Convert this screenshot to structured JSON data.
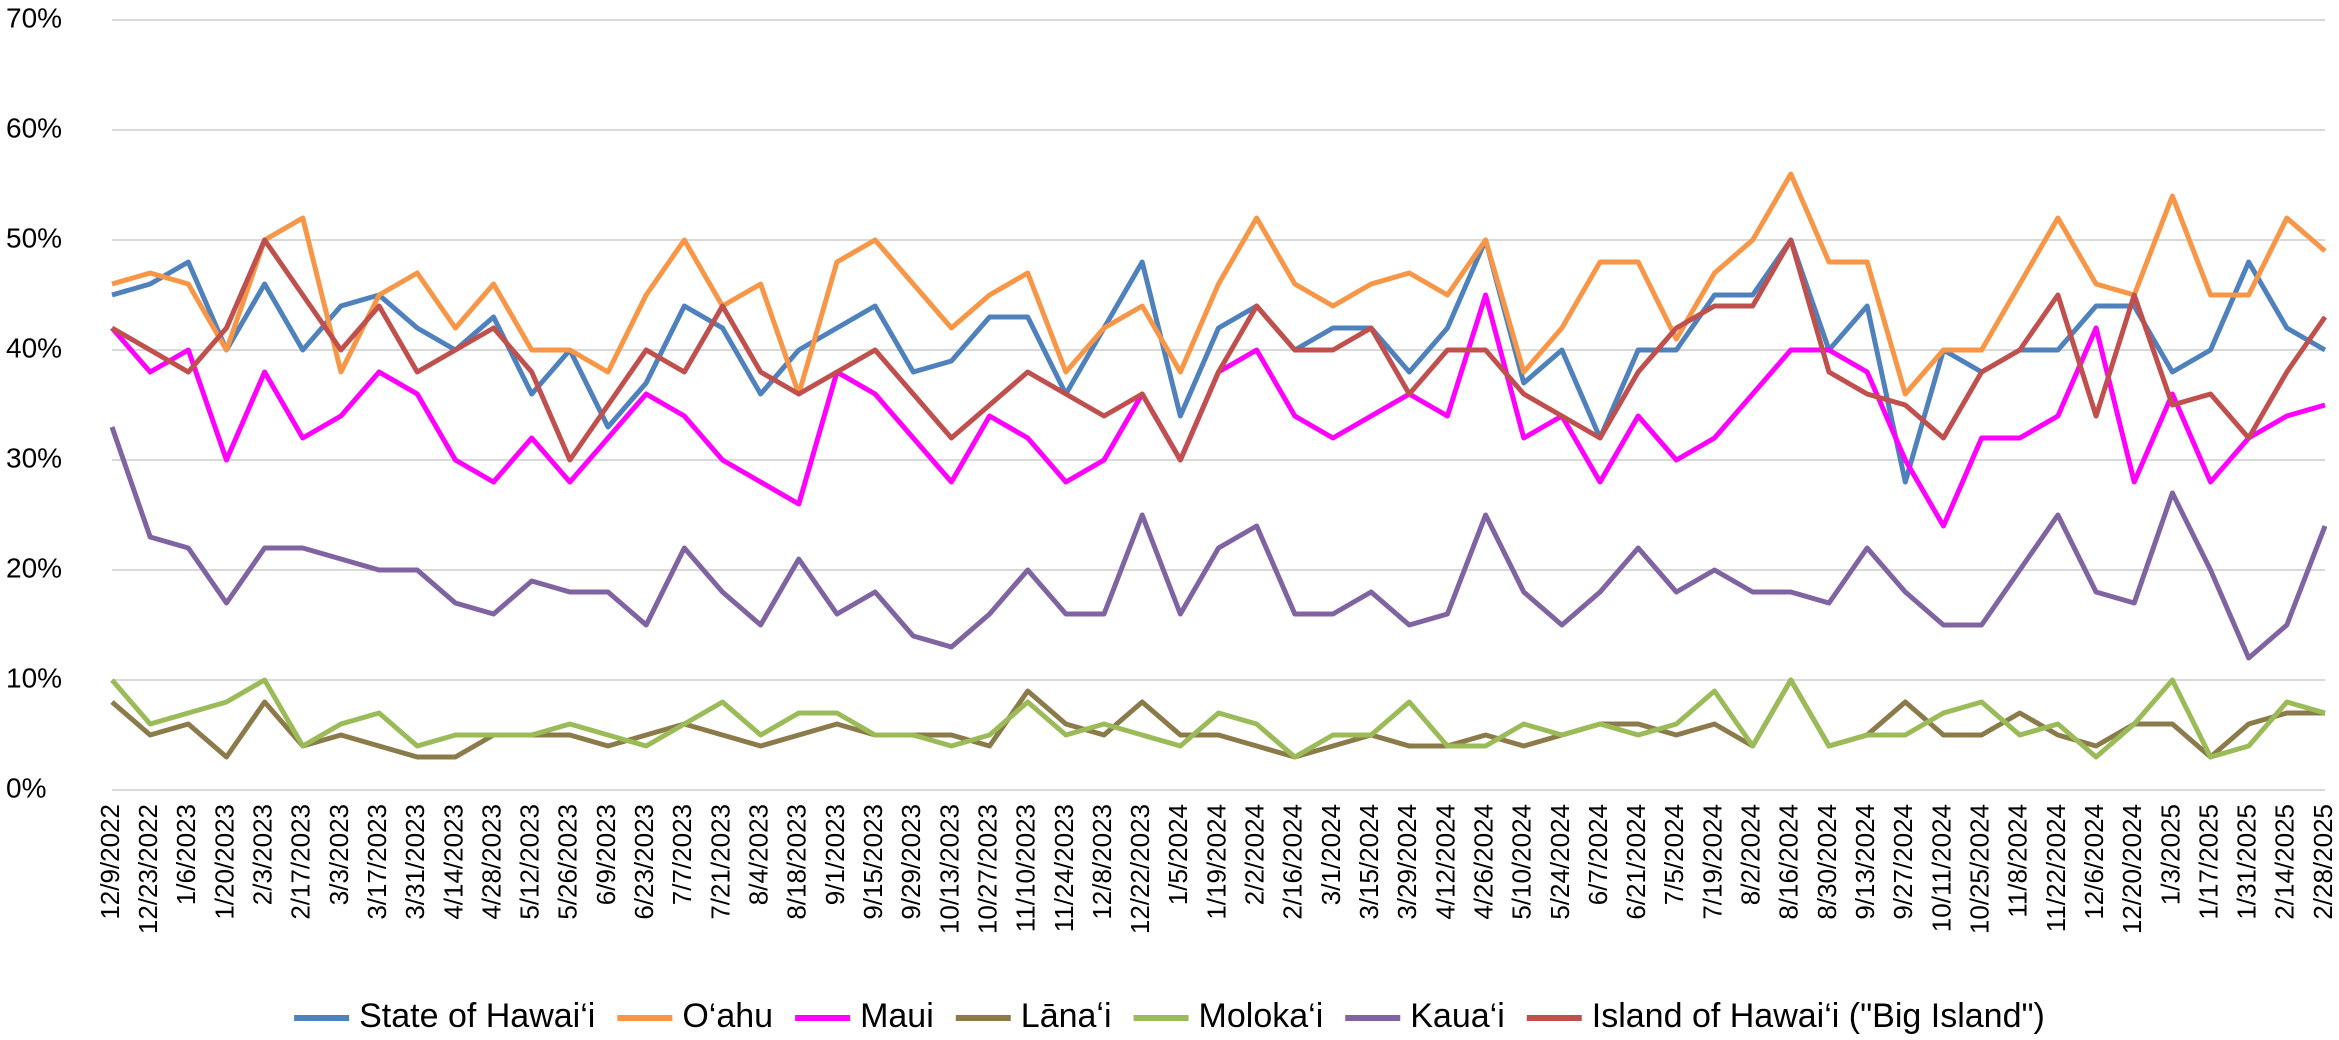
{
  "chart_data": {
    "type": "line",
    "categories": [
      "12/9/2022",
      "12/23/2022",
      "1/6/2023",
      "1/20/2023",
      "2/3/2023",
      "2/17/2023",
      "3/3/2023",
      "3/17/2023",
      "3/31/2023",
      "4/14/2023",
      "4/28/2023",
      "5/12/2023",
      "5/26/2023",
      "6/9/2023",
      "6/23/2023",
      "7/7/2023",
      "7/21/2023",
      "8/4/2023",
      "8/18/2023",
      "9/1/2023",
      "9/15/2023",
      "9/29/2023",
      "10/13/2023",
      "10/27/2023",
      "11/10/2023",
      "11/24/2023",
      "12/8/2023",
      "12/22/2023",
      "1/5/2024",
      "1/19/2024",
      "2/2/2024",
      "2/16/2024",
      "3/1/2024",
      "3/15/2024",
      "3/29/2024",
      "4/12/2024",
      "4/26/2024",
      "5/10/2024",
      "5/24/2024",
      "6/7/2024",
      "6/21/2024",
      "7/5/2024",
      "7/19/2024",
      "8/2/2024",
      "8/16/2024",
      "8/30/2024",
      "9/13/2024",
      "9/27/2024",
      "10/11/2024",
      "10/25/2024",
      "11/8/2024",
      "11/22/2024",
      "12/6/2024",
      "12/20/2024",
      "1/3/2025",
      "1/17/2025",
      "1/31/2025",
      "2/14/2025",
      "2/28/2025"
    ],
    "series": [
      {
        "name": "State of Hawai‘i",
        "color": "#4f81bd",
        "values": [
          45,
          46,
          48,
          40,
          46,
          40,
          44,
          45,
          42,
          40,
          43,
          36,
          40,
          33,
          37,
          44,
          42,
          36,
          40,
          42,
          44,
          38,
          39,
          43,
          43,
          36,
          42,
          48,
          34,
          42,
          44,
          40,
          42,
          42,
          38,
          42,
          50,
          37,
          40,
          32,
          40,
          40,
          45,
          45,
          50,
          40,
          44,
          28,
          40,
          38,
          40,
          40,
          44,
          44,
          38,
          40,
          48,
          42,
          40
        ]
      },
      {
        "name": "O‘ahu",
        "color": "#f79646",
        "values": [
          46,
          47,
          46,
          40,
          50,
          52,
          38,
          45,
          47,
          42,
          46,
          40,
          40,
          38,
          45,
          50,
          44,
          46,
          36,
          48,
          50,
          46,
          42,
          45,
          47,
          38,
          42,
          44,
          38,
          46,
          52,
          46,
          44,
          46,
          47,
          45,
          50,
          38,
          42,
          48,
          48,
          41,
          47,
          50,
          56,
          48,
          48,
          36,
          40,
          40,
          46,
          52,
          46,
          45,
          54,
          45,
          45,
          52,
          49
        ]
      },
      {
        "name": "Maui",
        "color": "#ff00ff",
        "values": [
          42,
          38,
          40,
          30,
          38,
          32,
          34,
          38,
          36,
          30,
          28,
          32,
          28,
          32,
          36,
          34,
          30,
          28,
          26,
          38,
          36,
          32,
          28,
          34,
          32,
          28,
          30,
          36,
          30,
          38,
          40,
          34,
          32,
          34,
          36,
          34,
          45,
          32,
          34,
          28,
          34,
          30,
          32,
          36,
          40,
          40,
          38,
          30,
          24,
          32,
          32,
          34,
          42,
          28,
          36,
          28,
          32,
          34,
          35
        ]
      },
      {
        "name": "Lānaʻi",
        "color": "#8c7b4a",
        "values": [
          8,
          5,
          6,
          3,
          8,
          4,
          5,
          4,
          3,
          3,
          5,
          5,
          5,
          4,
          5,
          6,
          5,
          4,
          5,
          6,
          5,
          5,
          5,
          4,
          9,
          6,
          5,
          8,
          5,
          5,
          4,
          3,
          4,
          5,
          4,
          4,
          5,
          4,
          5,
          6,
          6,
          5,
          6,
          4,
          10,
          4,
          5,
          8,
          5,
          5,
          7,
          5,
          4,
          6,
          6,
          3,
          6,
          7,
          7
        ]
      },
      {
        "name": "Moloka‘i",
        "color": "#9bbb59",
        "values": [
          10,
          6,
          7,
          8,
          10,
          4,
          6,
          7,
          4,
          5,
          5,
          5,
          6,
          5,
          4,
          6,
          8,
          5,
          7,
          7,
          5,
          5,
          4,
          5,
          8,
          5,
          6,
          5,
          4,
          7,
          6,
          3,
          5,
          5,
          8,
          4,
          4,
          6,
          5,
          6,
          5,
          6,
          9,
          4,
          10,
          4,
          5,
          5,
          7,
          8,
          5,
          6,
          3,
          6,
          10,
          3,
          4,
          8,
          7
        ]
      },
      {
        "name": "Kaua‘i",
        "color": "#8064a2",
        "values": [
          33,
          23,
          22,
          17,
          22,
          22,
          21,
          20,
          20,
          17,
          16,
          19,
          18,
          18,
          15,
          22,
          18,
          15,
          21,
          16,
          18,
          14,
          13,
          16,
          20,
          16,
          16,
          25,
          16,
          22,
          24,
          16,
          16,
          18,
          15,
          16,
          25,
          18,
          15,
          18,
          22,
          18,
          20,
          18,
          18,
          17,
          22,
          18,
          15,
          15,
          20,
          25,
          18,
          17,
          27,
          20,
          12,
          15,
          24
        ]
      },
      {
        "name": "Island of Hawai‘i (\"Big Island\")",
        "color": "#c0504d",
        "values": [
          42,
          40,
          38,
          42,
          50,
          45,
          40,
          44,
          38,
          40,
          42,
          38,
          30,
          35,
          40,
          38,
          44,
          38,
          36,
          38,
          40,
          36,
          32,
          35,
          38,
          36,
          34,
          36,
          30,
          38,
          44,
          40,
          40,
          42,
          36,
          40,
          40,
          36,
          34,
          32,
          38,
          42,
          44,
          44,
          50,
          38,
          36,
          35,
          32,
          38,
          40,
          45,
          34,
          45,
          35,
          36,
          32,
          38,
          43
        ]
      }
    ],
    "ylim": [
      0,
      70
    ],
    "yticks": [
      {
        "value": 0,
        "label": "0%"
      },
      {
        "value": 10,
        "label": "10%"
      },
      {
        "value": 20,
        "label": "20%"
      },
      {
        "value": 30,
        "label": "30%"
      },
      {
        "value": 40,
        "label": "40%"
      },
      {
        "value": 50,
        "label": "50%"
      },
      {
        "value": 60,
        "label": "60%"
      },
      {
        "value": 70,
        "label": "70%"
      }
    ],
    "grid": true,
    "legend": "bottom"
  }
}
